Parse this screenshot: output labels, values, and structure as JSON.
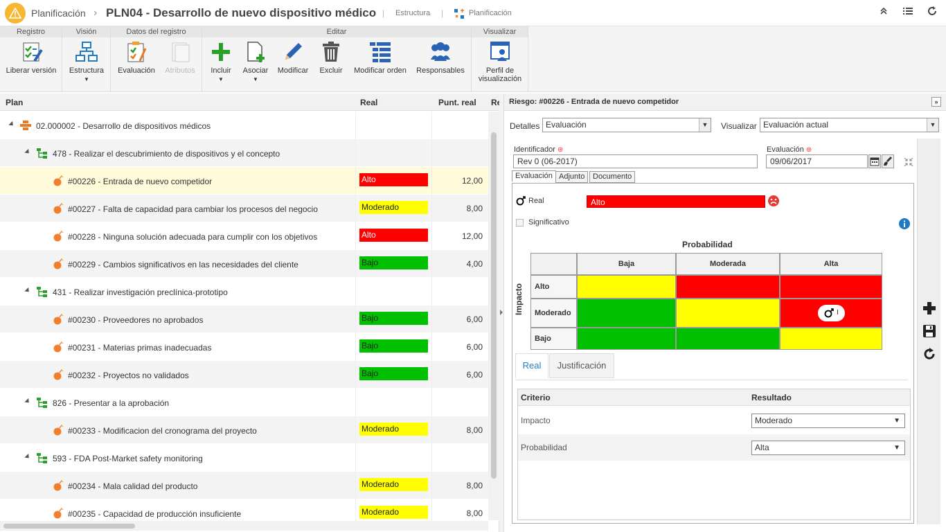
{
  "titlebar": {
    "app": "Planificación",
    "title": "PLN04 - Desarrollo de nuevo dispositivo médico",
    "link_estructura": "Estructura",
    "link_planificacion": "Planificación"
  },
  "ribbon": {
    "groups": {
      "registro": "Registro",
      "vision": "Visión",
      "datos": "Datos del registro",
      "editar": "Editar",
      "visualizar": "Visualizar"
    },
    "buttons": {
      "liberar": "Liberar versión",
      "estructura": "Estructura",
      "evaluacion": "Evaluación",
      "atributos": "Atributos",
      "incluir": "Incluir",
      "asociar": "Asociar",
      "modificar": "Modificar",
      "excluir": "Excluir",
      "modificar_orden": "Modificar orden",
      "responsables": "Responsables",
      "perfil1": "Perfil de",
      "perfil2": "visualización"
    }
  },
  "plan": {
    "headers": {
      "plan": "Plan",
      "real": "Real",
      "punt": "Punt. real",
      "more": "Re"
    },
    "rows": [
      {
        "label": "02.000002 - Desarrollo de dispositivos médicos",
        "level": 0,
        "kind": "root",
        "real": "",
        "punt": ""
      },
      {
        "label": "478 - Realizar el descubrimiento de dispositivos y el concepto",
        "level": 1,
        "kind": "task",
        "real": "",
        "punt": ""
      },
      {
        "label": "#00226 - Entrada de nuevo competidor",
        "level": 2,
        "kind": "risk",
        "real": "Alto",
        "punt": "12,00",
        "selected": true
      },
      {
        "label": "#00227 - Falta de capacidad para cambiar los procesos del negocio",
        "level": 2,
        "kind": "risk",
        "real": "Moderado",
        "punt": "8,00"
      },
      {
        "label": "#00228 - Ninguna solución adecuada para cumplir con los objetivos",
        "level": 2,
        "kind": "risk",
        "real": "Alto",
        "punt": "12,00"
      },
      {
        "label": "#00229 - Cambios significativos en las necesidades del cliente",
        "level": 2,
        "kind": "risk",
        "real": "Bajo",
        "punt": "4,00"
      },
      {
        "label": "431 - Realizar investigación preclínica-prototipo",
        "level": 1,
        "kind": "task",
        "real": "",
        "punt": ""
      },
      {
        "label": "#00230 - Proveedores no aprobados",
        "level": 2,
        "kind": "risk",
        "real": "Bajo",
        "punt": "6,00"
      },
      {
        "label": "#00231 - Materias primas inadecuadas",
        "level": 2,
        "kind": "risk",
        "real": "Bajo",
        "punt": "6,00"
      },
      {
        "label": "#00232 - Proyectos no validados",
        "level": 2,
        "kind": "risk",
        "real": "Bajo",
        "punt": "6,00"
      },
      {
        "label": "826 - Presentar a la aprobación",
        "level": 1,
        "kind": "task",
        "real": "",
        "punt": ""
      },
      {
        "label": "#00233 - Modificacion del cronograma del proyecto",
        "level": 2,
        "kind": "risk",
        "real": "Moderado",
        "punt": "8,00"
      },
      {
        "label": "593 - FDA Post-Market safety monitoring",
        "level": 1,
        "kind": "task",
        "real": "",
        "punt": ""
      },
      {
        "label": "#00234 - Mala calidad del producto",
        "level": 2,
        "kind": "risk",
        "real": "Moderado",
        "punt": "8,00"
      },
      {
        "label": "#00235 - Capacidad de producción insuficiente",
        "level": 2,
        "kind": "risk",
        "real": "Moderado",
        "punt": "8,00"
      }
    ]
  },
  "level_colors": {
    "Alto": "#ff0000",
    "Moderado": "#ffff00",
    "Bajo": "#00c000"
  },
  "risk": {
    "header": "Riesgo: #00226 - Entrada de nuevo competidor",
    "detalles_label": "Detalles",
    "detalles_value": "Evaluación",
    "visualizar_label": "Visualizar",
    "visualizar_value": "Evaluación actual",
    "identificador_label": "Identificador",
    "identificador_value": "Rev 0 (06-2017)",
    "evaluacion_label": "Evaluación",
    "evaluacion_value": "09/06/2017",
    "subtabs": [
      "Evaluación",
      "Adjunto",
      "Documento"
    ],
    "real_label": "Real",
    "real_value": "Alto",
    "significativo_label": "Significativo",
    "matrix": {
      "prob_title": "Probabilidad",
      "impact_title": "Impacto",
      "cols": [
        "Baja",
        "Moderada",
        "Alta"
      ],
      "rows": [
        "Alto",
        "Moderado",
        "Bajo"
      ],
      "cells": [
        [
          "#ffff00",
          "#ff0000",
          "#ff0000"
        ],
        [
          "#00c000",
          "#ffff00",
          "#ff0000"
        ],
        [
          "#00c000",
          "#00c000",
          "#ffff00"
        ]
      ],
      "marker_text": "I"
    },
    "tabs": [
      "Real",
      "Justificación"
    ],
    "criteria": {
      "headers": [
        "Criterio",
        "Resultado"
      ],
      "rows": [
        {
          "criterio": "Impacto",
          "resultado": "Moderado"
        },
        {
          "criterio": "Probabilidad",
          "resultado": "Alta"
        }
      ]
    }
  }
}
